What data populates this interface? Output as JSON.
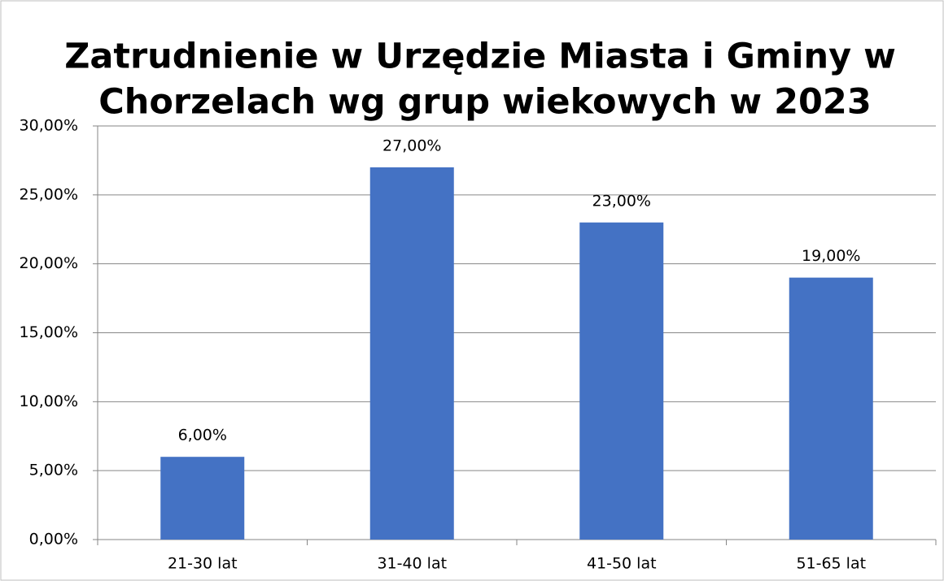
{
  "chart_data": {
    "type": "bar",
    "title": [
      "Zatrudnienie w Urzędzie Miasta i Gminy w",
      "Chorzelach wg grup wiekowych  w 2023"
    ],
    "categories": [
      "21-30 lat",
      "31-40 lat",
      "41-50 lat",
      "51-65 lat"
    ],
    "values": [
      6,
      27,
      23,
      19
    ],
    "value_labels": [
      "6,00%",
      "27,00%",
      "23,00%",
      "19,00%"
    ],
    "color": "#4472c4",
    "ylim": [
      0,
      30
    ],
    "yticks": [
      {
        "value": 0,
        "label": "0,00%"
      },
      {
        "value": 5,
        "label": "5,00%"
      },
      {
        "value": 10,
        "label": "10,00%"
      },
      {
        "value": 15,
        "label": "15,00%"
      },
      {
        "value": 20,
        "label": "20,00%"
      },
      {
        "value": 25,
        "label": "25,00%"
      },
      {
        "value": 30,
        "label": "30,00%"
      }
    ],
    "grid": true
  }
}
